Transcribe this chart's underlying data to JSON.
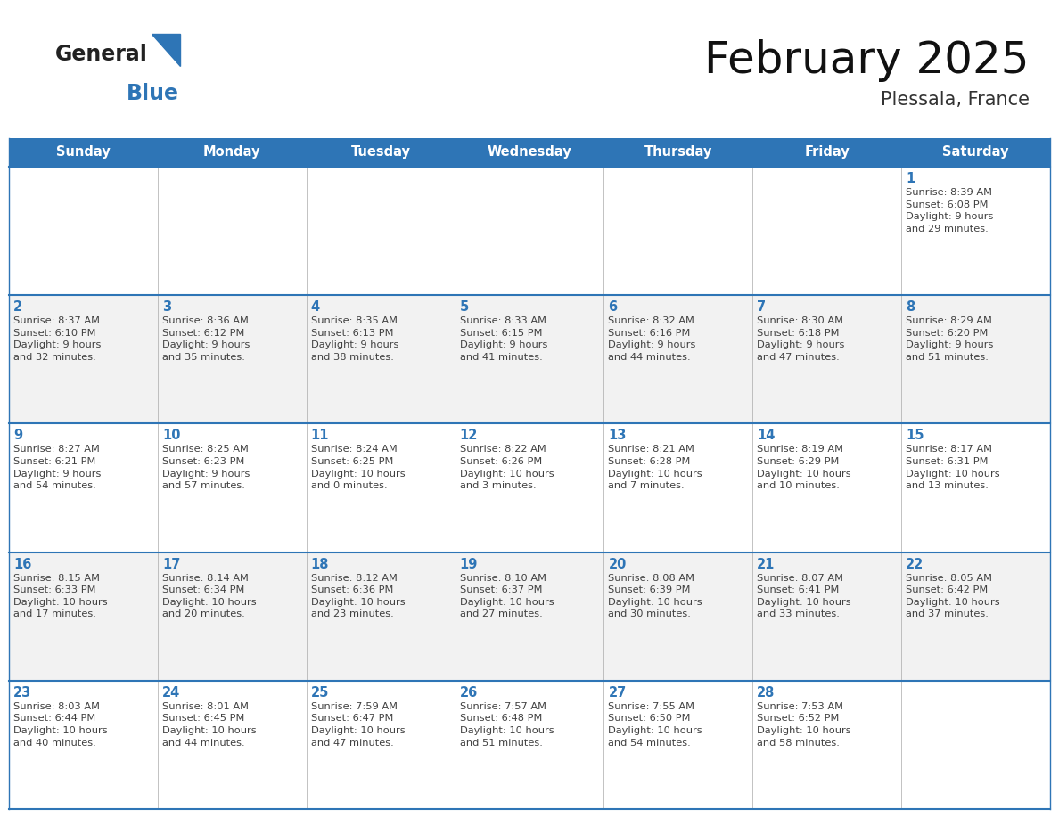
{
  "title": "February 2025",
  "subtitle": "Plessala, France",
  "header_color": "#2E75B6",
  "header_text_color": "#FFFFFF",
  "cell_bg_white": "#FFFFFF",
  "cell_bg_gray": "#F2F2F2",
  "border_color": "#2E75B6",
  "day_number_color": "#2E75B6",
  "text_color": "#404040",
  "logo_black": "#222222",
  "logo_blue": "#2E75B6",
  "days_of_week": [
    "Sunday",
    "Monday",
    "Tuesday",
    "Wednesday",
    "Thursday",
    "Friday",
    "Saturday"
  ],
  "weeks": [
    [
      {
        "day": "",
        "info": ""
      },
      {
        "day": "",
        "info": ""
      },
      {
        "day": "",
        "info": ""
      },
      {
        "day": "",
        "info": ""
      },
      {
        "day": "",
        "info": ""
      },
      {
        "day": "",
        "info": ""
      },
      {
        "day": "1",
        "info": "Sunrise: 8:39 AM\nSunset: 6:08 PM\nDaylight: 9 hours\nand 29 minutes."
      }
    ],
    [
      {
        "day": "2",
        "info": "Sunrise: 8:37 AM\nSunset: 6:10 PM\nDaylight: 9 hours\nand 32 minutes."
      },
      {
        "day": "3",
        "info": "Sunrise: 8:36 AM\nSunset: 6:12 PM\nDaylight: 9 hours\nand 35 minutes."
      },
      {
        "day": "4",
        "info": "Sunrise: 8:35 AM\nSunset: 6:13 PM\nDaylight: 9 hours\nand 38 minutes."
      },
      {
        "day": "5",
        "info": "Sunrise: 8:33 AM\nSunset: 6:15 PM\nDaylight: 9 hours\nand 41 minutes."
      },
      {
        "day": "6",
        "info": "Sunrise: 8:32 AM\nSunset: 6:16 PM\nDaylight: 9 hours\nand 44 minutes."
      },
      {
        "day": "7",
        "info": "Sunrise: 8:30 AM\nSunset: 6:18 PM\nDaylight: 9 hours\nand 47 minutes."
      },
      {
        "day": "8",
        "info": "Sunrise: 8:29 AM\nSunset: 6:20 PM\nDaylight: 9 hours\nand 51 minutes."
      }
    ],
    [
      {
        "day": "9",
        "info": "Sunrise: 8:27 AM\nSunset: 6:21 PM\nDaylight: 9 hours\nand 54 minutes."
      },
      {
        "day": "10",
        "info": "Sunrise: 8:25 AM\nSunset: 6:23 PM\nDaylight: 9 hours\nand 57 minutes."
      },
      {
        "day": "11",
        "info": "Sunrise: 8:24 AM\nSunset: 6:25 PM\nDaylight: 10 hours\nand 0 minutes."
      },
      {
        "day": "12",
        "info": "Sunrise: 8:22 AM\nSunset: 6:26 PM\nDaylight: 10 hours\nand 3 minutes."
      },
      {
        "day": "13",
        "info": "Sunrise: 8:21 AM\nSunset: 6:28 PM\nDaylight: 10 hours\nand 7 minutes."
      },
      {
        "day": "14",
        "info": "Sunrise: 8:19 AM\nSunset: 6:29 PM\nDaylight: 10 hours\nand 10 minutes."
      },
      {
        "day": "15",
        "info": "Sunrise: 8:17 AM\nSunset: 6:31 PM\nDaylight: 10 hours\nand 13 minutes."
      }
    ],
    [
      {
        "day": "16",
        "info": "Sunrise: 8:15 AM\nSunset: 6:33 PM\nDaylight: 10 hours\nand 17 minutes."
      },
      {
        "day": "17",
        "info": "Sunrise: 8:14 AM\nSunset: 6:34 PM\nDaylight: 10 hours\nand 20 minutes."
      },
      {
        "day": "18",
        "info": "Sunrise: 8:12 AM\nSunset: 6:36 PM\nDaylight: 10 hours\nand 23 minutes."
      },
      {
        "day": "19",
        "info": "Sunrise: 8:10 AM\nSunset: 6:37 PM\nDaylight: 10 hours\nand 27 minutes."
      },
      {
        "day": "20",
        "info": "Sunrise: 8:08 AM\nSunset: 6:39 PM\nDaylight: 10 hours\nand 30 minutes."
      },
      {
        "day": "21",
        "info": "Sunrise: 8:07 AM\nSunset: 6:41 PM\nDaylight: 10 hours\nand 33 minutes."
      },
      {
        "day": "22",
        "info": "Sunrise: 8:05 AM\nSunset: 6:42 PM\nDaylight: 10 hours\nand 37 minutes."
      }
    ],
    [
      {
        "day": "23",
        "info": "Sunrise: 8:03 AM\nSunset: 6:44 PM\nDaylight: 10 hours\nand 40 minutes."
      },
      {
        "day": "24",
        "info": "Sunrise: 8:01 AM\nSunset: 6:45 PM\nDaylight: 10 hours\nand 44 minutes."
      },
      {
        "day": "25",
        "info": "Sunrise: 7:59 AM\nSunset: 6:47 PM\nDaylight: 10 hours\nand 47 minutes."
      },
      {
        "day": "26",
        "info": "Sunrise: 7:57 AM\nSunset: 6:48 PM\nDaylight: 10 hours\nand 51 minutes."
      },
      {
        "day": "27",
        "info": "Sunrise: 7:55 AM\nSunset: 6:50 PM\nDaylight: 10 hours\nand 54 minutes."
      },
      {
        "day": "28",
        "info": "Sunrise: 7:53 AM\nSunset: 6:52 PM\nDaylight: 10 hours\nand 58 minutes."
      },
      {
        "day": "",
        "info": ""
      }
    ]
  ]
}
